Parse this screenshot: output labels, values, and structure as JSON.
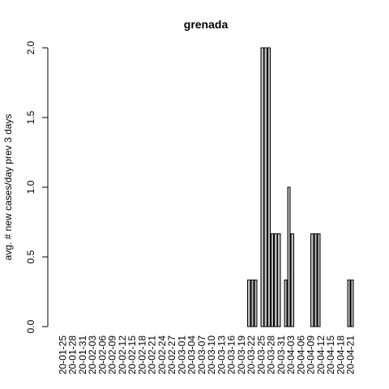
{
  "chart_data": {
    "type": "bar",
    "title": "grenada",
    "xlabel": "",
    "ylabel": "avg. # new cases/day prev  3  days",
    "ylim": [
      0,
      2
    ],
    "y_ticks": [
      0.0,
      0.5,
      1.0,
      1.5,
      2.0
    ],
    "y_tick_labels": [
      "0.0",
      "0.5",
      "1.0",
      "1.5",
      "2.0"
    ],
    "grid": false,
    "legend": "none",
    "bar_color": "#bebebe",
    "x_tick_labels": [
      "20-01-25",
      "20-01-28",
      "20-01-31",
      "20-02-03",
      "20-02-06",
      "20-02-09",
      "20-02-12",
      "20-02-15",
      "20-02-18",
      "20-02-21",
      "20-02-24",
      "20-02-27",
      "20-03-01",
      "20-03-04",
      "20-03-07",
      "20-03-10",
      "20-03-13",
      "20-03-16",
      "20-03-19",
      "20-03-22",
      "20-03-25",
      "20-03-28",
      "20-03-31",
      "20-04-03",
      "20-04-06",
      "20-04-09",
      "20-04-12",
      "20-04-15",
      "20-04-18",
      "20-04-21"
    ],
    "categories": [
      "20-01-25",
      "20-01-26",
      "20-01-27",
      "20-01-28",
      "20-01-29",
      "20-01-30",
      "20-01-31",
      "20-02-01",
      "20-02-02",
      "20-02-03",
      "20-02-04",
      "20-02-05",
      "20-02-06",
      "20-02-07",
      "20-02-08",
      "20-02-09",
      "20-02-10",
      "20-02-11",
      "20-02-12",
      "20-02-13",
      "20-02-14",
      "20-02-15",
      "20-02-16",
      "20-02-17",
      "20-02-18",
      "20-02-19",
      "20-02-20",
      "20-02-21",
      "20-02-22",
      "20-02-23",
      "20-02-24",
      "20-02-25",
      "20-02-26",
      "20-02-27",
      "20-02-28",
      "20-02-29",
      "20-03-01",
      "20-03-02",
      "20-03-03",
      "20-03-04",
      "20-03-05",
      "20-03-06",
      "20-03-07",
      "20-03-08",
      "20-03-09",
      "20-03-10",
      "20-03-11",
      "20-03-12",
      "20-03-13",
      "20-03-14",
      "20-03-15",
      "20-03-16",
      "20-03-17",
      "20-03-18",
      "20-03-19",
      "20-03-20",
      "20-03-21",
      "20-03-22",
      "20-03-23",
      "20-03-24",
      "20-03-25",
      "20-03-26",
      "20-03-27",
      "20-03-28",
      "20-03-29",
      "20-03-30",
      "20-03-31",
      "20-04-01",
      "20-04-02",
      "20-04-03",
      "20-04-04",
      "20-04-05",
      "20-04-06",
      "20-04-07",
      "20-04-08",
      "20-04-09",
      "20-04-10",
      "20-04-11",
      "20-04-12",
      "20-04-13",
      "20-04-14",
      "20-04-15",
      "20-04-16",
      "20-04-17",
      "20-04-18",
      "20-04-19",
      "20-04-20",
      "20-04-21",
      "20-04-22"
    ],
    "values": [
      0,
      0,
      0,
      0,
      0,
      0,
      0,
      0,
      0,
      0,
      0,
      0,
      0,
      0,
      0,
      0,
      0,
      0,
      0,
      0,
      0,
      0,
      0,
      0,
      0,
      0,
      0,
      0,
      0,
      0,
      0,
      0,
      0,
      0,
      0,
      0,
      0,
      0,
      0,
      0,
      0,
      0,
      0,
      0,
      0,
      0,
      0,
      0,
      0,
      0,
      0,
      0,
      0,
      0,
      0,
      0,
      0,
      0.3333,
      0.3333,
      0.3333,
      0,
      2,
      2,
      2,
      0.6667,
      0.6667,
      0.6667,
      0,
      0.3333,
      1,
      0.6667,
      0,
      0,
      0,
      0,
      0,
      0.6667,
      0.6667,
      0.6667,
      0,
      0,
      0,
      0,
      0,
      0,
      0,
      0,
      0.3333,
      0.3333
    ]
  }
}
